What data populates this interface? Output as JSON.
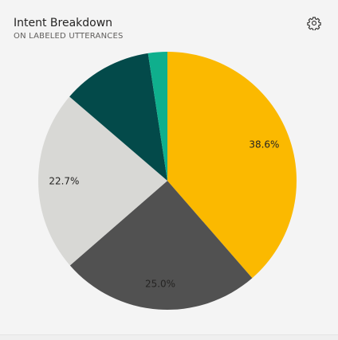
{
  "card": {
    "title": "Intent Breakdown",
    "subtitle": "ON LABELED UTTERANCES",
    "settings_icon": "gear-icon"
  },
  "chart_data": {
    "type": "pie",
    "title": "Intent Breakdown",
    "subtitle": "ON LABELED UTTERANCES",
    "slices": [
      {
        "value": 38.6,
        "label": "38.6%",
        "color": "#fbb900"
      },
      {
        "value": 25.0,
        "label": "25.0%",
        "color": "#515151"
      },
      {
        "value": 22.7,
        "label": "22.7%",
        "color": "#d8d8d5"
      },
      {
        "value": 11.3,
        "label": "",
        "color": "#034a4a"
      },
      {
        "value": 2.4,
        "label": "",
        "color": "#0faf8d"
      }
    ]
  }
}
